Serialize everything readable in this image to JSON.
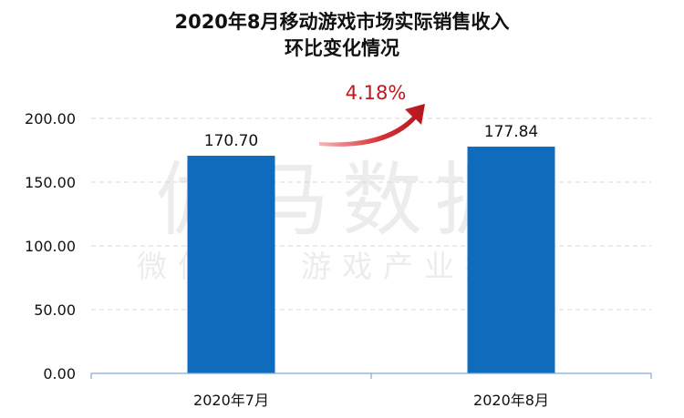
{
  "chart_data": {
    "type": "bar",
    "title": [
      "2020年8月移动游戏市场实际销售收入",
      "环比变化情况"
    ],
    "categories": [
      "2020年7月",
      "2020年8月"
    ],
    "values": [
      170.7,
      177.84
    ],
    "value_labels": [
      "170.70",
      "177.84"
    ],
    "yticks": [
      "0.00",
      "50.00",
      "100.00",
      "150.00",
      "200.00"
    ],
    "ylim": [
      0,
      200
    ],
    "grid": true,
    "bar_color": "#0f6cbd",
    "annotation": {
      "text": "4.18%",
      "color": "#c0161c"
    },
    "watermark": {
      "main": "伽马数据",
      "sub": "微信号：游戏产业报告"
    }
  }
}
